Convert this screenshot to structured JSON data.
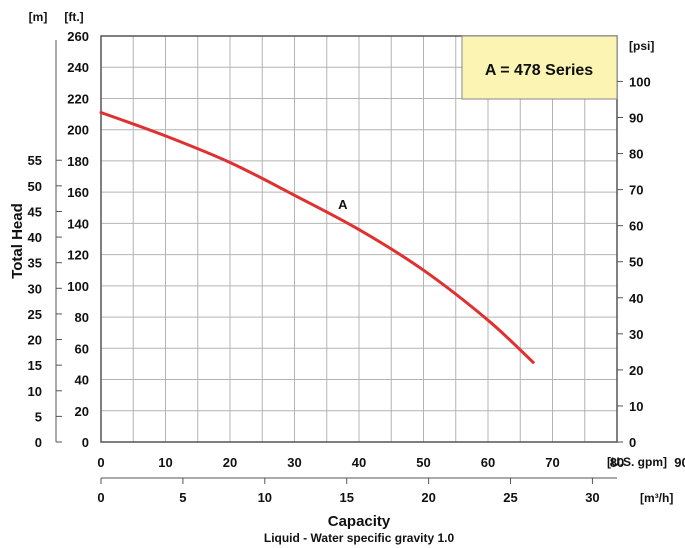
{
  "chart_data": {
    "type": "line",
    "title": "",
    "legend_box": {
      "text": "A = 478 Series",
      "bg": "#fbf4b3"
    },
    "xlabel": "Capacity",
    "subtitle": "Liquid - Water specific gravity 1.0",
    "ylabel": "Total Head",
    "x_gpm": {
      "unit": "[U.S. gpm]",
      "range": [
        0,
        80
      ],
      "ticks": [
        0,
        10,
        20,
        30,
        40,
        50,
        60,
        70,
        80,
        90
      ]
    },
    "x_m3h": {
      "unit": "[m³/h]",
      "range": [
        0,
        31.5
      ],
      "ticks": [
        0,
        5,
        10,
        15,
        20,
        25,
        30
      ]
    },
    "y_ft": {
      "unit": "[ft.]",
      "range": [
        0,
        260
      ],
      "ticks": [
        0,
        20,
        40,
        60,
        80,
        100,
        120,
        140,
        160,
        180,
        200,
        220,
        240,
        260
      ]
    },
    "y_m": {
      "unit": "[m]",
      "range": [
        0,
        79.25
      ],
      "ticks": [
        0,
        5,
        10,
        15,
        20,
        25,
        30,
        35,
        40,
        45,
        50,
        55
      ]
    },
    "y_psi": {
      "unit": "[psi]",
      "range": [
        0,
        112.6
      ],
      "ticks": [
        0,
        10,
        20,
        30,
        40,
        50,
        60,
        70,
        80,
        90,
        100
      ]
    },
    "grid": true,
    "series": [
      {
        "name": "A",
        "color": "#e03030",
        "x": [
          0,
          10,
          20,
          30,
          40,
          50,
          60,
          67
        ],
        "y": [
          211,
          196,
          179,
          158,
          136,
          110,
          78,
          51
        ]
      }
    ]
  }
}
